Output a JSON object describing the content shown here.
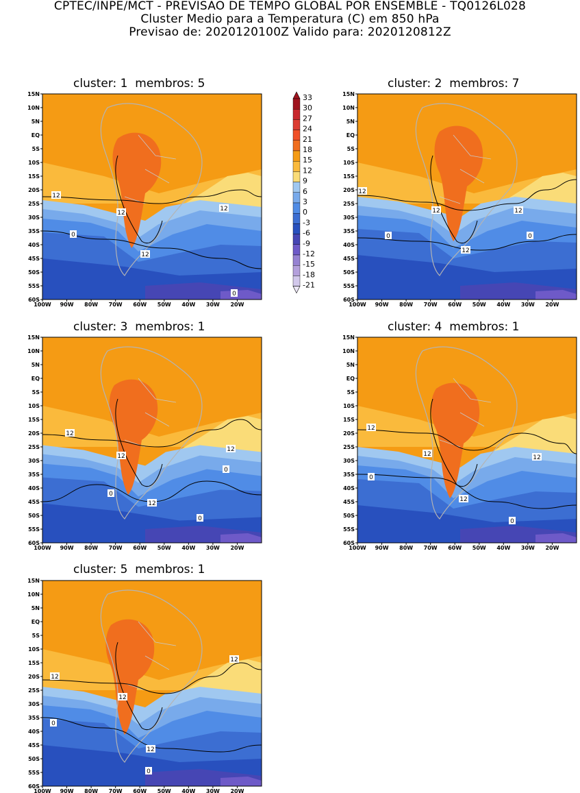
{
  "header": {
    "line1": "CPTEC/INPE/MCT - PREVISAO DE TEMPO GLOBAL POR ENSEMBLE - TQ0126L028",
    "line2": "Cluster Medio para a Temperatura (C) em 850 hPa",
    "line3": "Previsao de: 2020120100Z   Valido para: 2020120812Z"
  },
  "panels": [
    {
      "title": "cluster: 1  membros: 5"
    },
    {
      "title": "cluster: 2  membros: 7"
    },
    {
      "title": "cluster: 3  membros: 1"
    },
    {
      "title": "cluster: 4  membros: 1"
    },
    {
      "title": "cluster: 5  membros: 1"
    }
  ],
  "lat_labels": [
    "15N",
    "10N",
    "5N",
    "EQ",
    "5S",
    "10S",
    "15S",
    "20S",
    "25S",
    "30S",
    "35S",
    "40S",
    "45S",
    "50S",
    "55S",
    "60S"
  ],
  "lon_labels": [
    "100W",
    "90W",
    "80W",
    "70W",
    "60W",
    "50W",
    "40W",
    "30W",
    "20W"
  ],
  "colorbar": {
    "labels": [
      "33",
      "30",
      "27",
      "24",
      "21",
      "18",
      "15",
      "12",
      "9",
      "6",
      "3",
      "0",
      "-3",
      "-6",
      "-9",
      "-12",
      "-15",
      "-18",
      "-21"
    ],
    "colors": [
      "#a0141e",
      "#c8282d",
      "#dc3c32",
      "#f05028",
      "#f06e1e",
      "#f59b14",
      "#faba3c",
      "#fadc78",
      "#a0c8f0",
      "#78aaeb",
      "#508ce6",
      "#3c6ed2",
      "#2850be",
      "#4646b4",
      "#6e5ac8",
      "#9682d2",
      "#b4a0dc",
      "#d2c8eb"
    ]
  },
  "colors": {
    "warm": "#f59b14",
    "hot": "#f06e1e",
    "mild": "#fadc78",
    "light_orange": "#faba3c",
    "cool1": "#a0c8f0",
    "cool2": "#78aaeb",
    "cool3": "#508ce6",
    "cold": "#3c6ed2",
    "colder": "#2850be",
    "coldest": "#4646b4",
    "purple": "#6e5ac8"
  },
  "contour_labels": {
    "twelve": "12",
    "zero": "0"
  }
}
